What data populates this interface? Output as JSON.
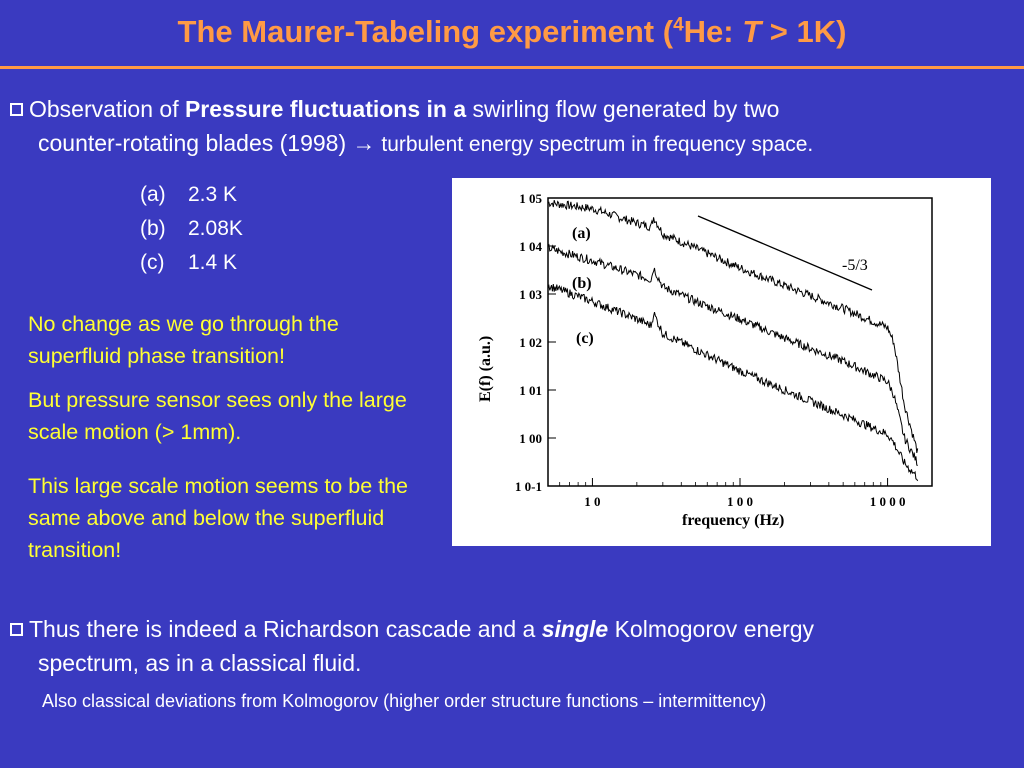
{
  "title": {
    "part1": "The Maurer-Tabeling experiment  (",
    "sup": "4",
    "part2": "He: ",
    "italic": "T",
    "part3": " > 1K)"
  },
  "bullet1": {
    "pre": "Observation of ",
    "bold": "Pressure fluctuations in a",
    "post": " swirling flow generated by two",
    "line2": "counter-rotating blades (1998)",
    "arrow": "→",
    "line2_small": " turbulent energy spectrum in frequency space."
  },
  "conditions": [
    {
      "label": "(a)",
      "value": "2.3 K"
    },
    {
      "label": "(b)",
      "value": "2.08K"
    },
    {
      "label": "(c)",
      "value": "1.4 K"
    }
  ],
  "notes": [
    "No change as we go through the superfluid phase transition!",
    "But pressure sensor sees only the large scale motion (> 1mm).",
    "This large scale motion seems to be the same above and below the superfluid transition!"
  ],
  "bullet2": {
    "pre": "Thus there is indeed a Richardson cascade and a ",
    "bold_italic": "single",
    "post": " Kolmogorov energy",
    "line2": "spectrum,  as in a classical fluid."
  },
  "footnote": "Also classical deviations from Kolmogorov (higher order structure functions – intermittency)",
  "chart_data": {
    "type": "line",
    "xlabel": "frequency  (Hz)",
    "ylabel": "E(f)   (a.u.)",
    "xscale": "log",
    "yscale": "log",
    "xlim": [
      5,
      2000
    ],
    "ylim": [
      0.1,
      100000
    ],
    "x_ticks": [
      "1 0",
      "1 0 0",
      "1 0 0 0"
    ],
    "y_ticks": [
      "1 0-1",
      "1 00",
      "1 01",
      "1 02",
      "1 03",
      "1 04",
      "1 05"
    ],
    "annotation": "-5/3",
    "series": [
      {
        "name": "(a)",
        "x": [
          5,
          10,
          20,
          25,
          26,
          30,
          50,
          100,
          200,
          500,
          1000,
          1100,
          1300,
          1600
        ],
        "y": [
          80000,
          60000,
          30000,
          25000,
          40000,
          18000,
          9000,
          3500,
          1500,
          500,
          200,
          100,
          5,
          0.5
        ]
      },
      {
        "name": "(b)",
        "x": [
          5,
          10,
          20,
          25,
          26,
          30,
          50,
          100,
          200,
          500,
          1000,
          1100,
          1300,
          1600
        ],
        "y": [
          9000,
          5000,
          2500,
          2000,
          3500,
          1400,
          700,
          300,
          120,
          40,
          15,
          8,
          1,
          0.3
        ]
      },
      {
        "name": "(c)",
        "x": [
          5,
          10,
          20,
          25,
          26,
          30,
          50,
          100,
          200,
          500,
          1000,
          1100,
          1300,
          1600
        ],
        "y": [
          1500,
          700,
          300,
          220,
          400,
          150,
          70,
          25,
          10,
          3,
          1.2,
          0.8,
          0.3,
          0.15
        ]
      }
    ],
    "colors": {
      "line": "#000000",
      "background": "#ffffff"
    }
  }
}
